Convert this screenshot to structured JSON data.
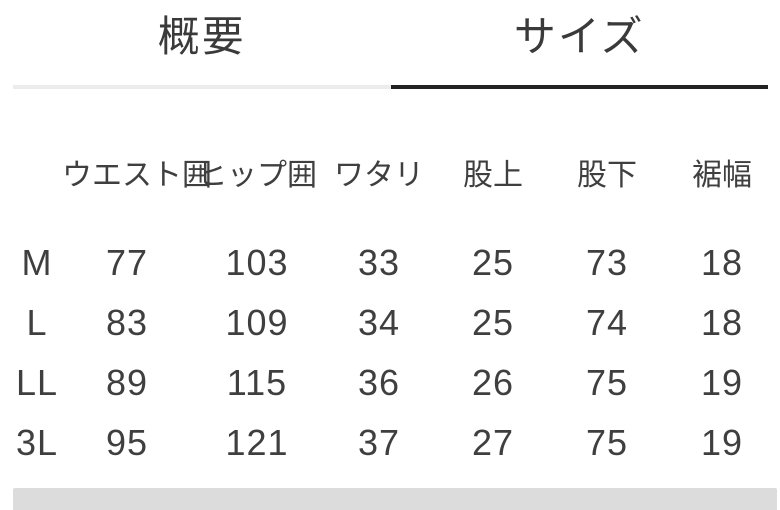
{
  "tabs": [
    {
      "label": "概要",
      "active": false
    },
    {
      "label": "サイズ",
      "active": true
    }
  ],
  "size_table": {
    "columns": [
      "",
      "ウエスト囲",
      "ヒップ囲",
      "ワタリ",
      "股上",
      "股下",
      "裾幅"
    ],
    "rows": [
      {
        "size": "M",
        "values": [
          "77",
          "103",
          "33",
          "25",
          "73",
          "18"
        ]
      },
      {
        "size": "L",
        "values": [
          "83",
          "109",
          "34",
          "25",
          "74",
          "18"
        ]
      },
      {
        "size": "LL",
        "values": [
          "89",
          "115",
          "36",
          "26",
          "75",
          "19"
        ]
      },
      {
        "size": "3L",
        "values": [
          "95",
          "121",
          "37",
          "27",
          "75",
          "19"
        ]
      }
    ]
  },
  "colors": {
    "active_tab_underline": "#222222",
    "inactive_tab_underline": "#ececec",
    "text": "#3f3f3f",
    "scrollbar_track": "#dcdcdc",
    "background": "#ffffff"
  }
}
